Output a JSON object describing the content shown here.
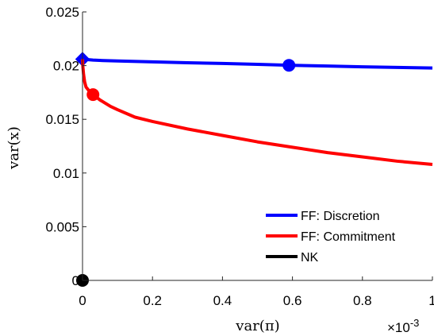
{
  "chart_data": {
    "type": "line",
    "xlabel": "var(π)",
    "ylabel": "var(x)",
    "x_exponent_label": "×10",
    "x_exponent_power": "-3",
    "xlim": [
      0,
      0.001
    ],
    "ylim": [
      0,
      0.025
    ],
    "x_ticks": [
      0,
      0.0002,
      0.0004,
      0.0006,
      0.0008,
      0.001
    ],
    "x_tick_labels": [
      "0",
      "0.2",
      "0.4",
      "0.6",
      "0.8",
      "1"
    ],
    "y_ticks": [
      0,
      0.005,
      0.01,
      0.015,
      0.02,
      0.025
    ],
    "y_tick_labels": [
      "0",
      "0.005",
      "0.01",
      "0.015",
      "0.02",
      "0.025"
    ],
    "grid": false,
    "legend_position": "bottom-right",
    "series": [
      {
        "name": "FF: Discretion",
        "color": "#0000ff",
        "x": [
          0,
          1e-05,
          3e-05,
          6e-05,
          0.0001,
          0.0002,
          0.0003,
          0.0004,
          0.0005,
          0.0006,
          0.0007,
          0.0008,
          0.0009,
          0.001
        ],
        "y": [
          0.0206,
          0.02057,
          0.02052,
          0.02047,
          0.02043,
          0.02035,
          0.02027,
          0.0202,
          0.02012,
          0.02003,
          0.01996,
          0.01989,
          0.01983,
          0.01978
        ],
        "markers": [
          {
            "x": 0,
            "y": 0.0206,
            "shape": "diamond"
          },
          {
            "x": 0.00059,
            "y": 0.02003,
            "shape": "circle"
          }
        ]
      },
      {
        "name": "FF: Commitment",
        "color": "#ff0000",
        "x": [
          0,
          1e-06,
          3e-06,
          6e-06,
          1e-05,
          2e-05,
          3e-05,
          5e-05,
          8e-05,
          0.0001,
          0.00015,
          0.0002,
          0.0003,
          0.0004,
          0.0005,
          0.0006,
          0.0007,
          0.0008,
          0.0009,
          0.001
        ],
        "y": [
          0.0206,
          0.0199,
          0.0192,
          0.0185,
          0.018,
          0.0176,
          0.0173,
          0.0168,
          0.0162,
          0.0159,
          0.0152,
          0.0148,
          0.0141,
          0.0135,
          0.0129,
          0.0124,
          0.0119,
          0.0115,
          0.0111,
          0.0108
        ],
        "markers": [
          {
            "x": 3e-05,
            "y": 0.0173,
            "shape": "circle"
          }
        ]
      },
      {
        "name": "NK",
        "color": "#000000",
        "x": [
          0
        ],
        "y": [
          0
        ],
        "markers": [
          {
            "x": 0,
            "y": 0,
            "shape": "circle"
          }
        ]
      }
    ]
  }
}
